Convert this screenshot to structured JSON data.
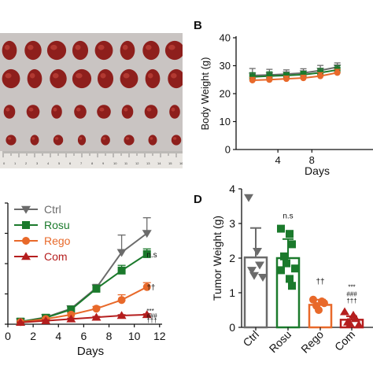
{
  "panel_labels": {
    "b": "B",
    "d": "D"
  },
  "photo": {
    "ruler_numbers": [
      "0",
      "1",
      "2",
      "3",
      "4",
      "5",
      "6",
      "7",
      "8",
      "9",
      "10",
      "11",
      "12",
      "13",
      "14",
      "15",
      "16"
    ]
  },
  "colors": {
    "ctrl": "#6b6b6b",
    "rosu": "#1b7a2c",
    "rego": "#e8692a",
    "com": "#b51e1e"
  },
  "chart_data": [
    {
      "id": "body-weight",
      "type": "line",
      "xlabel": "Days",
      "ylabel": "Body Weight (g)",
      "xlim": [
        0,
        10
      ],
      "ylim": [
        0,
        40
      ],
      "xticks": [
        4,
        8
      ],
      "yticks": [
        0,
        10,
        20,
        30,
        40
      ],
      "x": [
        1,
        3,
        5,
        7,
        9,
        11
      ],
      "series": [
        {
          "key": "ctrl",
          "values": [
            26.5,
            26.7,
            27.0,
            27.4,
            28.3,
            29.5
          ],
          "err": [
            2.5,
            2.0,
            1.5,
            1.5,
            1.8,
            1.5
          ]
        },
        {
          "key": "rosu",
          "values": [
            26.0,
            26.3,
            26.5,
            26.8,
            27.5,
            28.5
          ],
          "err": [
            1.5,
            1.5,
            1.0,
            1.2,
            1.5,
            1.5
          ]
        },
        {
          "key": "rego",
          "values": [
            24.8,
            25.0,
            25.3,
            25.6,
            26.3,
            27.5
          ],
          "err": [
            1.0,
            1.0,
            1.0,
            1.0,
            1.2,
            1.2
          ]
        }
      ]
    },
    {
      "id": "tumor-volume",
      "type": "line",
      "xlabel": "Days",
      "ylabel": "",
      "xlim": [
        0,
        12.2
      ],
      "ylim": [
        0,
        1400
      ],
      "xticks": [
        0,
        2,
        4,
        6,
        8,
        10,
        12
      ],
      "x": [
        1,
        3,
        5,
        7,
        9,
        11
      ],
      "legend": [
        "Ctrl",
        "Rosu",
        "Rego",
        "Com"
      ],
      "series": [
        {
          "name": "Ctrl",
          "key": "ctrl",
          "marker": "tri-down",
          "values": [
            30,
            80,
            180,
            420,
            830,
            1050
          ],
          "err": [
            10,
            20,
            30,
            40,
            200,
            180
          ]
        },
        {
          "name": "Rosu",
          "key": "rosu",
          "marker": "square",
          "values": [
            30,
            75,
            170,
            410,
            620,
            810
          ],
          "err": [
            10,
            15,
            30,
            40,
            60,
            60
          ]
        },
        {
          "name": "Rego",
          "key": "rego",
          "marker": "circle",
          "values": [
            25,
            60,
            110,
            180,
            280,
            430
          ],
          "err": [
            10,
            15,
            20,
            25,
            60,
            50
          ]
        },
        {
          "name": "Com",
          "key": "com",
          "marker": "tri-up",
          "values": [
            20,
            40,
            60,
            80,
            100,
            110
          ],
          "err": [
            5,
            10,
            10,
            10,
            10,
            10
          ]
        }
      ],
      "annotations": [
        {
          "text": "n.s",
          "x": 11.35,
          "y": 810,
          "color": "#111111"
        },
        {
          "text": "††",
          "x": 11.35,
          "y": 430,
          "color": "#111111"
        },
        {
          "text": "***",
          "x": 11.35,
          "y": 165,
          "color": "#111111"
        },
        {
          "text": "###",
          "x": 11.35,
          "y": 110,
          "color": "#111111"
        },
        {
          "text": "†††",
          "x": 11.35,
          "y": 55,
          "color": "#111111"
        }
      ]
    },
    {
      "id": "tumor-weight",
      "type": "bar",
      "ylabel": "Tumor Weight (g)",
      "ylim": [
        0,
        4
      ],
      "yticks": [
        0,
        1,
        2,
        3,
        4
      ],
      "categories": [
        "Ctrl",
        "Rosu",
        "Rego",
        "Com"
      ],
      "values": [
        2.02,
        2.0,
        0.65,
        0.22
      ],
      "err": [
        0.85,
        0.55,
        0.15,
        0.1
      ],
      "points": [
        [
          3.75,
          2.2,
          1.8,
          1.65,
          1.5,
          1.45
        ],
        [
          2.85,
          2.7,
          2.4,
          2.05,
          1.85,
          1.7,
          1.65,
          1.4,
          1.2
        ],
        [
          0.8,
          0.75,
          0.7,
          0.62,
          0.5
        ],
        [
          0.45,
          0.35,
          0.25,
          0.15,
          0.1,
          0.07
        ]
      ],
      "annotations": [
        {
          "text": "n.s",
          "category": 1,
          "y": 3.15
        },
        {
          "text": "††",
          "category": 2,
          "y": 1.25
        },
        {
          "text": "***",
          "category": 3,
          "y": 1.1
        },
        {
          "text": "###",
          "category": 3,
          "y": 0.9
        },
        {
          "text": "†††",
          "category": 3,
          "y": 0.7
        }
      ]
    }
  ]
}
